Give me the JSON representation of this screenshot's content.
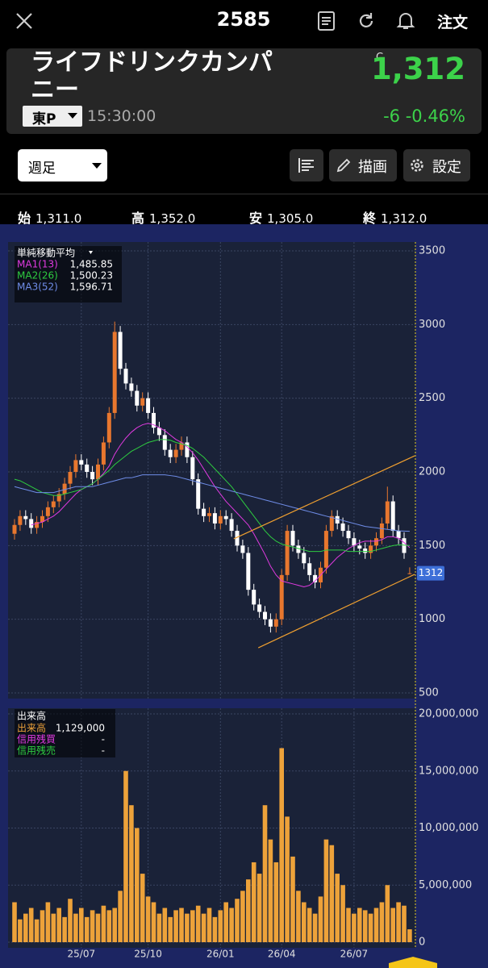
{
  "header": {
    "symbol": "2585",
    "order": "注文"
  },
  "quote": {
    "name": "ライフドリンクカンパニー",
    "market": "東P",
    "time": "15:30:00",
    "flag": "C",
    "price": "1,312",
    "change": "-6",
    "change_pct": "-0.46%"
  },
  "toolbar": {
    "period": "週足",
    "draw": "描画",
    "settings": "設定"
  },
  "ohlc": [
    {
      "label": "始",
      "value": "1,311.0"
    },
    {
      "label": "高",
      "value": "1,352.0"
    },
    {
      "label": "安",
      "value": "1,305.0"
    },
    {
      "label": "終",
      "value": "1,312.0"
    }
  ],
  "chart_data": [
    {
      "type": "candlestick",
      "title": "単純移動平均",
      "open": [
        1580,
        1640,
        1700,
        1680,
        1620,
        1660,
        1700,
        1760,
        1800,
        1850,
        1920,
        2000,
        2080,
        2050,
        2000,
        1950,
        2050,
        2200,
        2400,
        2950,
        2700,
        2600,
        2550,
        2450,
        2500,
        2400,
        2300,
        2250,
        2150,
        2100,
        2150,
        2200,
        2100,
        1950,
        1750,
        1700,
        1720,
        1650,
        1700,
        1680,
        1600,
        1500,
        1450,
        1200,
        1100,
        1050,
        1000,
        950,
        1000,
        1300,
        1600,
        1500,
        1450,
        1380,
        1300,
        1250,
        1350,
        1600,
        1700,
        1650,
        1600,
        1550,
        1500,
        1480,
        1450,
        1500,
        1550,
        1650,
        1800,
        1600,
        1550,
        1311
      ],
      "high": [
        1680,
        1740,
        1740,
        1720,
        1700,
        1740,
        1800,
        1840,
        1890,
        1960,
        2040,
        2120,
        2120,
        2090,
        2040,
        2090,
        2240,
        2440,
        3020,
        2990,
        2740,
        2640,
        2590,
        2540,
        2540,
        2440,
        2340,
        2290,
        2190,
        2190,
        2240,
        2240,
        2140,
        1990,
        1790,
        1760,
        1760,
        1740,
        1740,
        1720,
        1640,
        1540,
        1490,
        1240,
        1140,
        1090,
        1040,
        1040,
        1340,
        1640,
        1640,
        1540,
        1490,
        1420,
        1340,
        1390,
        1640,
        1740,
        1740,
        1690,
        1640,
        1590,
        1540,
        1520,
        1540,
        1590,
        1690,
        1900,
        1840,
        1640,
        1590,
        1352
      ],
      "low": [
        1540,
        1600,
        1640,
        1580,
        1580,
        1620,
        1660,
        1720,
        1760,
        1810,
        1880,
        1960,
        2010,
        1960,
        1910,
        1910,
        2010,
        2160,
        2360,
        2660,
        2560,
        2510,
        2410,
        2410,
        2360,
        2260,
        2210,
        2110,
        2060,
        2060,
        2110,
        2060,
        1910,
        1710,
        1660,
        1660,
        1610,
        1610,
        1640,
        1560,
        1460,
        1410,
        1160,
        1060,
        1010,
        960,
        910,
        910,
        960,
        1260,
        1460,
        1410,
        1340,
        1260,
        1210,
        1210,
        1310,
        1560,
        1610,
        1560,
        1510,
        1460,
        1440,
        1410,
        1410,
        1460,
        1510,
        1610,
        1560,
        1510,
        1410,
        1305
      ],
      "close": [
        1640,
        1700,
        1680,
        1620,
        1660,
        1700,
        1760,
        1800,
        1850,
        1920,
        2000,
        2080,
        2050,
        2000,
        1950,
        2050,
        2200,
        2400,
        2950,
        2700,
        2600,
        2550,
        2450,
        2500,
        2400,
        2300,
        2250,
        2150,
        2100,
        2150,
        2200,
        2100,
        1950,
        1750,
        1700,
        1720,
        1650,
        1700,
        1680,
        1600,
        1500,
        1450,
        1200,
        1100,
        1050,
        1000,
        950,
        1000,
        1300,
        1600,
        1500,
        1450,
        1380,
        1300,
        1250,
        1350,
        1600,
        1700,
        1650,
        1600,
        1550,
        1500,
        1480,
        1450,
        1500,
        1550,
        1650,
        1800,
        1600,
        1550,
        1450,
        1312
      ],
      "up_color": "#e8772e",
      "down_color": "#ffffff",
      "series": [
        {
          "name": "MA1(13)",
          "color": "#e03ae0",
          "legend_value": "1,485.85",
          "values": [
            null,
            null,
            null,
            1640,
            1650,
            1660,
            1680,
            1700,
            1730,
            1770,
            1810,
            1850,
            1880,
            1900,
            1920,
            1950,
            1990,
            2040,
            2120,
            2180,
            2230,
            2270,
            2300,
            2320,
            2330,
            2320,
            2300,
            2280,
            2250,
            2220,
            2200,
            2170,
            2130,
            2080,
            2020,
            1960,
            1900,
            1850,
            1800,
            1760,
            1720,
            1680,
            1640,
            1580,
            1510,
            1440,
            1360,
            1300,
            1260,
            1250,
            1240,
            1230,
            1220,
            1230,
            1260,
            1300,
            1340,
            1380,
            1420,
            1450,
            1480,
            1500,
            1520,
            1530,
            1530,
            1530,
            1540,
            1560,
            1560,
            1550,
            1520,
            1485.85
          ]
        },
        {
          "name": "MA2(26)",
          "color": "#2ecc40",
          "legend_value": "1,500.23",
          "values": [
            1950,
            1940,
            1920,
            1900,
            1880,
            1860,
            1850,
            1840,
            1840,
            1850,
            1860,
            1870,
            1880,
            1900,
            1920,
            1950,
            1980,
            2010,
            2050,
            2080,
            2110,
            2140,
            2160,
            2180,
            2200,
            2210,
            2220,
            2220,
            2215,
            2200,
            2190,
            2180,
            2160,
            2130,
            2100,
            2060,
            2020,
            1980,
            1940,
            1900,
            1850,
            1800,
            1750,
            1700,
            1650,
            1600,
            1560,
            1530,
            1510,
            1500,
            1490,
            1480,
            1470,
            1460,
            1460,
            1460,
            1470,
            1470,
            1470,
            1470,
            1460,
            1460,
            1460,
            1460,
            1460,
            1470,
            1480,
            1490,
            1500,
            1505,
            1503,
            1500.23
          ]
        },
        {
          "name": "MA3(52)",
          "color": "#6f8de8",
          "legend_value": "1,596.71",
          "values": [
            1900,
            1890,
            1880,
            1870,
            1860,
            1860,
            1860,
            1860,
            1870,
            1880,
            1890,
            1900,
            1900,
            1900,
            1900,
            1910,
            1920,
            1930,
            1940,
            1950,
            1960,
            1960,
            1970,
            1980,
            1980,
            1980,
            1980,
            1980,
            1975,
            1970,
            1960,
            1950,
            1940,
            1930,
            1920,
            1910,
            1900,
            1890,
            1880,
            1870,
            1860,
            1850,
            1840,
            1830,
            1820,
            1810,
            1800,
            1790,
            1780,
            1770,
            1760,
            1750,
            1740,
            1730,
            1720,
            1710,
            1700,
            1690,
            1680,
            1670,
            1660,
            1650,
            1640,
            1630,
            1625,
            1620,
            1615,
            1610,
            1605,
            1600,
            1598,
            1596.71
          ]
        }
      ],
      "trendlines": [
        {
          "color": "#f0a030",
          "x": [
            39.4,
            71.9
          ],
          "y": [
            1546,
            2109
          ]
        },
        {
          "color": "#f0a030",
          "x": [
            43.8,
            71.9
          ],
          "y": [
            806,
            1305
          ]
        }
      ],
      "last_price": 1312,
      "last_price_color": "#3d6fd8",
      "ylim": [
        500,
        3500
      ],
      "yticks": [
        500,
        1000,
        1500,
        2000,
        2500,
        3000,
        3500
      ],
      "grid": true
    },
    {
      "type": "bar",
      "title": "出来高",
      "categories": [
        null,
        null,
        null,
        null,
        null,
        null,
        null,
        null,
        null,
        null,
        null,
        null,
        "25/07",
        null,
        null,
        null,
        null,
        null,
        null,
        null,
        null,
        null,
        null,
        null,
        "25/10",
        null,
        null,
        null,
        null,
        null,
        null,
        null,
        null,
        null,
        null,
        null,
        null,
        "26/01",
        null,
        null,
        null,
        null,
        null,
        null,
        null,
        null,
        null,
        null,
        "26/04",
        null,
        null,
        null,
        null,
        null,
        null,
        null,
        null,
        null,
        null,
        null,
        null,
        "26/07",
        null,
        null,
        null,
        null,
        null,
        null,
        null,
        null,
        null,
        null
      ],
      "series": [
        {
          "name": "出来高",
          "color": "#eda23a",
          "legend_value": "1,129,000",
          "values": [
            3500000,
            2000000,
            2500000,
            3000000,
            2000000,
            2800000,
            3500000,
            2500000,
            3000000,
            2200000,
            3800000,
            2500000,
            3000000,
            2200000,
            2800000,
            2500000,
            3200000,
            2800000,
            3000000,
            4500000,
            15000000,
            12000000,
            10000000,
            6000000,
            4000000,
            3500000,
            2500000,
            3000000,
            2200000,
            2800000,
            3000000,
            2500000,
            2800000,
            3200000,
            2500000,
            3000000,
            2200000,
            2800000,
            3500000,
            3000000,
            3800000,
            4500000,
            5500000,
            7000000,
            6000000,
            12000000,
            9000000,
            7000000,
            17000000,
            11000000,
            7500000,
            4500000,
            3500000,
            3000000,
            2500000,
            4000000,
            9000000,
            8500000,
            6000000,
            5000000,
            3000000,
            2500000,
            3000000,
            2800000,
            2500000,
            3000000,
            3500000,
            5000000,
            3000000,
            3500000,
            3200000,
            1129000
          ]
        },
        {
          "name": "信用残買",
          "color": "#e03ae0",
          "legend_value": "-"
        },
        {
          "name": "信用残売",
          "color": "#2ecc40",
          "legend_value": "-"
        }
      ],
      "ylim": [
        0,
        20000000
      ],
      "yticks": [
        0,
        {
          "value": 5000000,
          "label": "5,000,000"
        },
        {
          "value": 10000000,
          "label": "10,000,000"
        },
        {
          "value": 15000000,
          "label": "15,000,000"
        },
        {
          "value": 20000000,
          "label": "20,000,000"
        }
      ],
      "grid": true
    }
  ]
}
